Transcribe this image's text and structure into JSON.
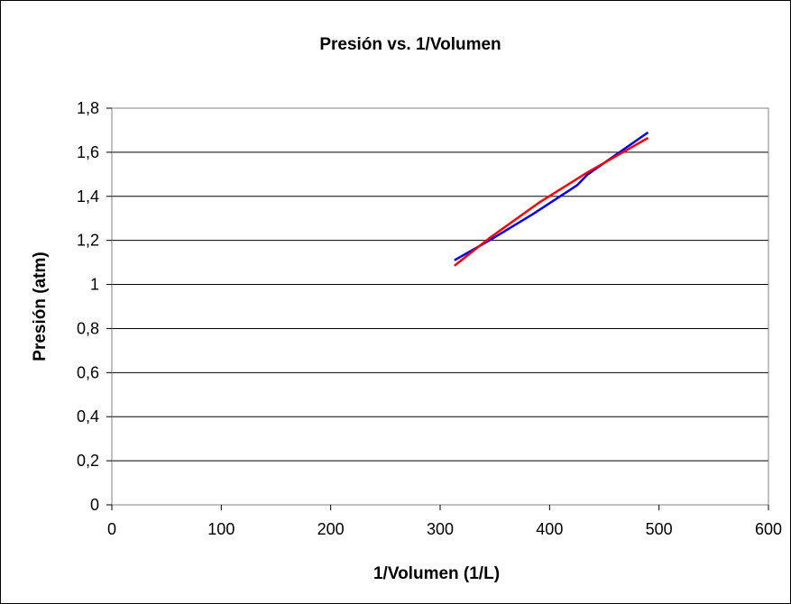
{
  "chart_data": {
    "type": "line",
    "title": "Presión vs. 1/Volumen",
    "xlabel": "1/Volumen (1/L)",
    "ylabel": "Presión (atm)",
    "xlim": [
      0,
      600
    ],
    "ylim": [
      0,
      1.8
    ],
    "x_ticks": [
      "0",
      "100",
      "200",
      "300",
      "400",
      "500",
      "600"
    ],
    "y_ticks": [
      "0",
      "0,2",
      "0,4",
      "0,6",
      "0,8",
      "1",
      "1,2",
      "1,4",
      "1,6",
      "1,8"
    ],
    "x_tick_values": [
      0,
      100,
      200,
      300,
      400,
      500,
      600
    ],
    "y_tick_values": [
      0,
      0.2,
      0.4,
      0.6,
      0.8,
      1.0,
      1.2,
      1.4,
      1.6,
      1.8
    ],
    "grid": "horizontal",
    "legend": "none",
    "series": [
      {
        "color": "#0000ff",
        "points": [
          [
            313,
            1.11
          ],
          [
            345,
            1.2
          ],
          [
            385,
            1.32
          ],
          [
            425,
            1.45
          ],
          [
            435,
            1.5
          ],
          [
            490,
            1.69
          ]
        ]
      },
      {
        "color": "#ff0000",
        "points": [
          [
            313,
            1.085
          ],
          [
            345,
            1.21
          ],
          [
            390,
            1.37
          ],
          [
            435,
            1.51
          ],
          [
            490,
            1.665
          ]
        ]
      }
    ]
  }
}
